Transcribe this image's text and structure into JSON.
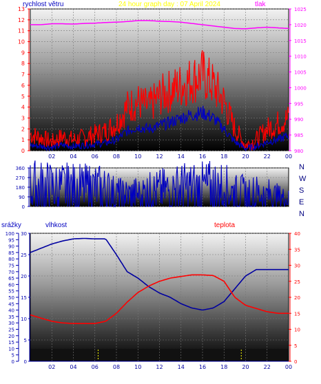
{
  "colors": {
    "wind": "#ff0000",
    "wind_dir": "#0000c0",
    "pressure": "#ff00ff",
    "humidity": "#0000a0",
    "temperature": "#ff0000",
    "rain_marks": "#ffff00",
    "title": "#ffff00",
    "axis_blue": "#0000b0",
    "axis_red": "#ff0000",
    "axis_magenta": "#ff00ff"
  },
  "header": {
    "wind_label": "rychlost větru",
    "title": "24 hour graph day : 07 April 2024",
    "pressure_label": "tlak"
  },
  "bottom_labels": {
    "rain": "srážky",
    "humidity": "vlhkost",
    "temperature": "teplota"
  },
  "compass": [
    "N",
    "W",
    "S",
    "E",
    "N"
  ],
  "x_ticks": [
    "02",
    "04",
    "06",
    "08",
    "10",
    "12",
    "14",
    "16",
    "18",
    "20",
    "22",
    "00"
  ],
  "chart_data": [
    {
      "type": "line",
      "title": "24 hour graph day : 07 April 2024",
      "x_unit": "hour",
      "x_range": [
        0,
        24
      ],
      "axes": {
        "left": {
          "label": "rychlost větru",
          "range": [
            0,
            13
          ],
          "ticks": [
            0,
            1,
            2,
            3,
            4,
            5,
            6,
            7,
            8,
            9,
            10,
            11,
            12,
            13
          ]
        },
        "right": {
          "label": "tlak",
          "range": [
            980,
            1025
          ],
          "ticks": [
            980,
            985,
            990,
            995,
            1000,
            1005,
            1010,
            1015,
            1020,
            1025
          ]
        }
      },
      "series": [
        {
          "name": "tlak",
          "axis": "right",
          "x": [
            0,
            1,
            2,
            3,
            4,
            5,
            6,
            7,
            8,
            9,
            10,
            11,
            12,
            13,
            14,
            15,
            16,
            17,
            18,
            19,
            20,
            21,
            22,
            23,
            24
          ],
          "values": [
            1020,
            1020,
            1020.3,
            1020.3,
            1020.2,
            1020.4,
            1020.5,
            1020.7,
            1020.8,
            1021,
            1021.3,
            1021.3,
            1021.1,
            1021,
            1020.8,
            1020.4,
            1020,
            1019.6,
            1019.2,
            1018.8,
            1018.7,
            1019,
            1019.2,
            1019,
            1018.8
          ]
        },
        {
          "name": "rychlost větru (gust)",
          "axis": "left",
          "x": [
            0,
            1,
            2,
            3,
            4,
            5,
            6,
            7,
            8,
            9,
            10,
            11,
            12,
            13,
            14,
            15,
            16,
            17,
            18,
            19,
            20,
            21,
            22,
            23,
            24
          ],
          "values": [
            1.5,
            1.2,
            0.8,
            1.3,
            1.0,
            1.2,
            1.5,
            1.8,
            2.5,
            4.0,
            4.5,
            4.0,
            5.0,
            5.5,
            6.0,
            6.5,
            7.0,
            6.0,
            4.5,
            2.0,
            0.5,
            1.0,
            2.0,
            2.5,
            3.0
          ]
        },
        {
          "name": "rychlost větru (avg)",
          "axis": "left",
          "x": [
            0,
            1,
            2,
            3,
            4,
            5,
            6,
            7,
            8,
            9,
            10,
            11,
            12,
            13,
            14,
            15,
            16,
            17,
            18,
            19,
            20,
            21,
            22,
            23,
            24
          ],
          "values": [
            0.5,
            0.4,
            0.3,
            0.5,
            0.4,
            0.5,
            0.6,
            0.7,
            1.0,
            1.8,
            2.2,
            2.0,
            2.3,
            2.6,
            3.0,
            3.3,
            3.5,
            3.0,
            2.0,
            0.8,
            0.2,
            0.4,
            0.8,
            1.0,
            1.4
          ]
        }
      ]
    },
    {
      "type": "line",
      "x_unit": "hour",
      "x_range": [
        0,
        24
      ],
      "axes": {
        "left": {
          "range": [
            0,
            360
          ],
          "ticks": [
            0,
            90,
            180,
            270,
            360
          ]
        }
      },
      "series": [
        {
          "name": "směr větru",
          "x": [
            0,
            1,
            2,
            3,
            4,
            5,
            6,
            7,
            8,
            9,
            10,
            11,
            12,
            13,
            14,
            15,
            16,
            17,
            18,
            19,
            20,
            21,
            22,
            23,
            24
          ],
          "values": [
            180,
            175,
            170,
            165,
            165,
            160,
            165,
            150,
            110,
            105,
            115,
            130,
            140,
            155,
            165,
            170,
            170,
            175,
            170,
            120,
            120,
            120,
            110,
            85,
            65
          ]
        }
      ]
    },
    {
      "type": "line",
      "x_unit": "hour",
      "x_range": [
        0,
        24
      ],
      "axes": {
        "rain": {
          "label": "srážky",
          "range": [
            0,
            100
          ],
          "ticks": [
            0,
            5,
            10,
            15,
            20,
            25,
            30,
            35,
            40,
            45,
            50,
            55,
            60,
            65,
            70,
            75,
            80,
            85,
            90,
            95,
            100
          ]
        },
        "humidity": {
          "label": "vlhkost",
          "range": [
            0,
            30
          ],
          "ticks": [
            0,
            5,
            10,
            15,
            20,
            25,
            30
          ]
        },
        "temperature": {
          "label": "teplota",
          "range": [
            0,
            40
          ],
          "ticks": [
            0,
            5,
            10,
            15,
            20,
            25,
            30,
            35,
            40
          ]
        }
      },
      "series": [
        {
          "name": "vlhkost",
          "axis": "humidity",
          "x": [
            0,
            1,
            2,
            3,
            4,
            5,
            6,
            7,
            8,
            9,
            10,
            11,
            12,
            13,
            14,
            15,
            16,
            17,
            18,
            19,
            20,
            21,
            22,
            23,
            24
          ],
          "values": [
            25.5,
            26.5,
            27.5,
            28.2,
            28.7,
            28.8,
            28.7,
            28.7,
            25.0,
            21.0,
            19.5,
            17.5,
            16.0,
            15.0,
            13.5,
            12.5,
            12.0,
            12.5,
            14.0,
            17.0,
            20.0,
            21.5,
            21.5,
            21.5,
            21.5
          ]
        },
        {
          "name": "teplota",
          "axis": "temperature",
          "x": [
            0,
            1,
            2,
            3,
            4,
            5,
            6,
            7,
            8,
            9,
            10,
            11,
            12,
            13,
            14,
            15,
            16,
            17,
            18,
            19,
            20,
            21,
            22,
            23,
            24
          ],
          "values": [
            14.5,
            13.5,
            12.5,
            12.0,
            11.8,
            11.8,
            11.8,
            12.5,
            15.0,
            18.5,
            21.5,
            23.5,
            25.0,
            26.0,
            26.5,
            27.0,
            27.0,
            26.8,
            25.0,
            20.0,
            17.5,
            16.5,
            15.5,
            15.0,
            15.0
          ]
        },
        {
          "name": "srážky",
          "axis": "rain",
          "x": [
            0,
            24
          ],
          "values": [
            0,
            0
          ]
        }
      ]
    }
  ]
}
